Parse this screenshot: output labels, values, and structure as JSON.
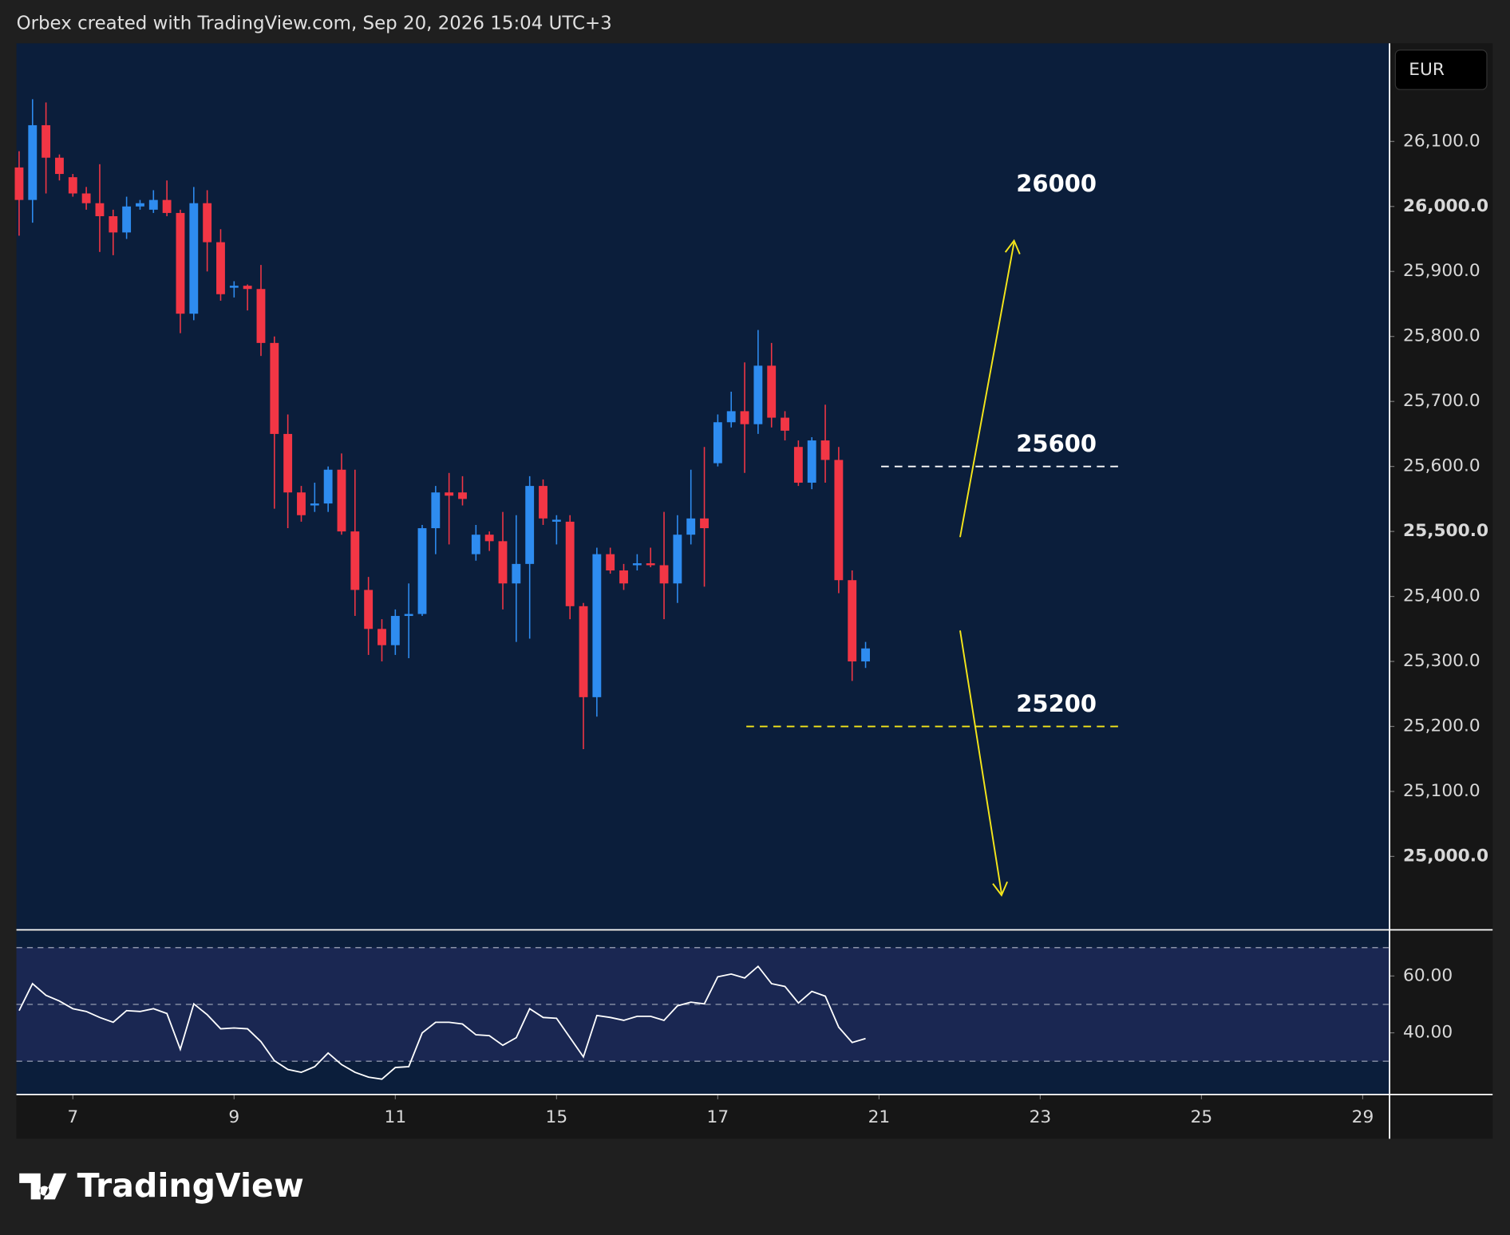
{
  "header": {
    "credit": "Orbex created with TradingView.com, Sep 20, 2026 15:04 UTC+3",
    "currency": "EUR"
  },
  "footer": {
    "logo": "TradingView"
  },
  "chart_data": [
    {
      "type": "candlestick",
      "series": [
        {
          "up_color": "#2e8cf0",
          "down_color": "#f23645",
          "open": [
            26060,
            26010,
            26125,
            26075,
            26045,
            26020,
            26005,
            25985,
            25960,
            26000,
            25995,
            26010,
            25990,
            25835,
            26005,
            25945,
            25875,
            25878,
            25873,
            25790,
            25650,
            25560,
            25540,
            25543,
            25595,
            25500,
            25410,
            25350,
            25325,
            25370,
            25373,
            25505,
            25560,
            25560,
            25465,
            25495,
            25485,
            25420,
            25450,
            25570,
            25515,
            25515,
            25385,
            25245,
            25465,
            25440,
            25448,
            25451,
            25448,
            25420,
            25495,
            25520,
            25605,
            25668,
            25685,
            25665,
            25755,
            25675,
            25630,
            25575,
            25640,
            25610,
            25425,
            25300
          ],
          "high": [
            26085,
            26165,
            26160,
            26080,
            26050,
            26030,
            26065,
            25995,
            26015,
            26010,
            26025,
            26040,
            25995,
            26030,
            26025,
            25965,
            25885,
            25880,
            25910,
            25800,
            25680,
            25570,
            25575,
            25600,
            25620,
            25595,
            25430,
            25365,
            25380,
            25420,
            25510,
            25570,
            25590,
            25585,
            25510,
            25500,
            25530,
            25525,
            25585,
            25580,
            25525,
            25525,
            25390,
            25475,
            25475,
            25450,
            25465,
            25475,
            25530,
            25525,
            25595,
            25630,
            25680,
            25715,
            25760,
            25810,
            25790,
            25685,
            25640,
            25645,
            25695,
            25630,
            25440,
            25330
          ],
          "low": [
            25955,
            25975,
            26020,
            26040,
            26015,
            25995,
            25930,
            25925,
            25950,
            25995,
            25990,
            25985,
            25805,
            25825,
            25900,
            25855,
            25860,
            25840,
            25770,
            25535,
            25505,
            25515,
            25530,
            25530,
            25495,
            25370,
            25310,
            25300,
            25310,
            25305,
            25370,
            25465,
            25480,
            25540,
            25455,
            25470,
            25380,
            25330,
            25335,
            25510,
            25480,
            25365,
            25165,
            25215,
            25435,
            25410,
            25440,
            25445,
            25365,
            25390,
            25480,
            25415,
            25600,
            25660,
            25590,
            25650,
            25660,
            25640,
            25570,
            25565,
            25575,
            25405,
            25270,
            25290
          ],
          "close": [
            26010,
            26125,
            26075,
            26050,
            26020,
            26005,
            25985,
            25960,
            26000,
            26005,
            26010,
            25990,
            25835,
            26005,
            25945,
            25865,
            25878,
            25873,
            25790,
            25650,
            25560,
            25525,
            25543,
            25595,
            25500,
            25410,
            25350,
            25325,
            25370,
            25373,
            25505,
            25560,
            25555,
            25550,
            25495,
            25485,
            25420,
            25450,
            25570,
            25520,
            25518,
            25385,
            25245,
            25465,
            25440,
            25420,
            25451,
            25448,
            25420,
            25495,
            25520,
            25505,
            25668,
            25685,
            25665,
            25755,
            25675,
            25655,
            25575,
            25640,
            25610,
            25425,
            25300,
            25320
          ]
        }
      ],
      "xlim": [
        -0.2,
        102
      ],
      "xticks": [
        {
          "value": 4,
          "label": "7"
        },
        {
          "value": 16,
          "label": "9"
        },
        {
          "value": 28,
          "label": "11"
        },
        {
          "value": 40,
          "label": "15"
        },
        {
          "value": 52,
          "label": "17"
        },
        {
          "value": 64,
          "label": "21"
        },
        {
          "value": 76,
          "label": "23"
        },
        {
          "value": 88,
          "label": "25"
        },
        {
          "value": 100,
          "label": "29"
        }
      ],
      "ylim": [
        24887,
        26251
      ],
      "yticks": [
        {
          "value": 26100,
          "label": "26,100.0"
        },
        {
          "value": 26000,
          "label": "26,000.0"
        },
        {
          "value": 25900,
          "label": "25,900.0"
        },
        {
          "value": 25800,
          "label": "25,800.0"
        },
        {
          "value": 25700,
          "label": "25,700.0"
        },
        {
          "value": 25600,
          "label": "25,600.0"
        },
        {
          "value": 25500,
          "label": "25,500.0"
        },
        {
          "value": 25400,
          "label": "25,400.0"
        },
        {
          "value": 25300,
          "label": "25,300.0"
        },
        {
          "value": 25200,
          "label": "25,200.0"
        },
        {
          "value": 25100,
          "label": "25,100.0"
        },
        {
          "value": 25000,
          "label": "25,000.0"
        }
      ],
      "levels": [
        {
          "value": 26000,
          "label": "26000"
        },
        {
          "value": 25600,
          "label": "25600",
          "line_color": "#ffffff"
        },
        {
          "value": 25200,
          "label": "25200",
          "line_color": "#f5e61a"
        }
      ]
    },
    {
      "type": "line",
      "series": [
        {
          "color": "#ffffff",
          "values": [
            47.8,
            57.3,
            53.2,
            51.2,
            48.5,
            47.5,
            45.4,
            43.7,
            47.8,
            47.5,
            48.5,
            46.8,
            34.2,
            50.2,
            46.4,
            41.4,
            41.7,
            41.4,
            36.9,
            30.2,
            27.1,
            26.1,
            28.1,
            32.9,
            28.8,
            26.1,
            24.4,
            23.7,
            27.8,
            28.1,
            40.0,
            43.7,
            43.7,
            43.1,
            39.3,
            39.0,
            35.6,
            38.3,
            48.5,
            45.4,
            45.1,
            38.3,
            31.5,
            46.1,
            45.4,
            44.4,
            45.8,
            45.8,
            44.4,
            49.5,
            50.8,
            50.2,
            59.7,
            60.7,
            59.3,
            63.4,
            57.3,
            56.3,
            50.5,
            54.6,
            52.9,
            42.0,
            36.6,
            38.0
          ]
        }
      ],
      "ylim": [
        18.3,
        75.9
      ],
      "yticks": [
        {
          "value": 60,
          "label": "60.00"
        },
        {
          "value": 40,
          "label": "40.00"
        }
      ],
      "levels": [
        70,
        50,
        30
      ],
      "band": [
        30,
        70
      ]
    }
  ]
}
